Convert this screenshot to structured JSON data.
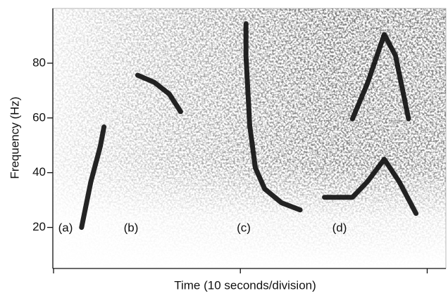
{
  "chart_data": {
    "type": "line",
    "y_label": "Frequency (Hz)",
    "x_label": "Time (10 seconds/division)",
    "xlim": [
      0,
      21
    ],
    "xticks": [
      0,
      10,
      20
    ],
    "ylim": [
      5,
      100
    ],
    "yticks": [
      20,
      40,
      60,
      80
    ],
    "annotations": [
      "(a)",
      "(b)",
      "(c)",
      "(d)"
    ],
    "series": [
      {
        "color": "#111111",
        "x": [
          1.5,
          2.0,
          2.5,
          2.7
        ],
        "values": [
          20,
          36.7,
          49.5,
          56.7
        ]
      },
      {
        "color": "#111111",
        "x": [
          4.5,
          5.4,
          6.2,
          6.8
        ],
        "values": [
          75.6,
          73,
          68.7,
          62.3
        ]
      },
      {
        "color": "#111111",
        "x": [
          10.3,
          10.3,
          10.5,
          10.8,
          11.3,
          12.2,
          13.2
        ],
        "values": [
          94.4,
          82.8,
          57.2,
          41.8,
          34.1,
          29,
          26.4
        ]
      },
      {
        "color": "#111111",
        "x": [
          16,
          16.8,
          17.7,
          18.3,
          19
        ],
        "values": [
          59.7,
          72.6,
          90.5,
          82.8,
          59.7
        ]
      },
      {
        "color": "#111111",
        "x": [
          14.5,
          16,
          16.8,
          17.7,
          18.5,
          19.4
        ],
        "values": [
          31,
          31,
          36.7,
          44.9,
          36.7,
          25.1
        ]
      }
    ]
  }
}
